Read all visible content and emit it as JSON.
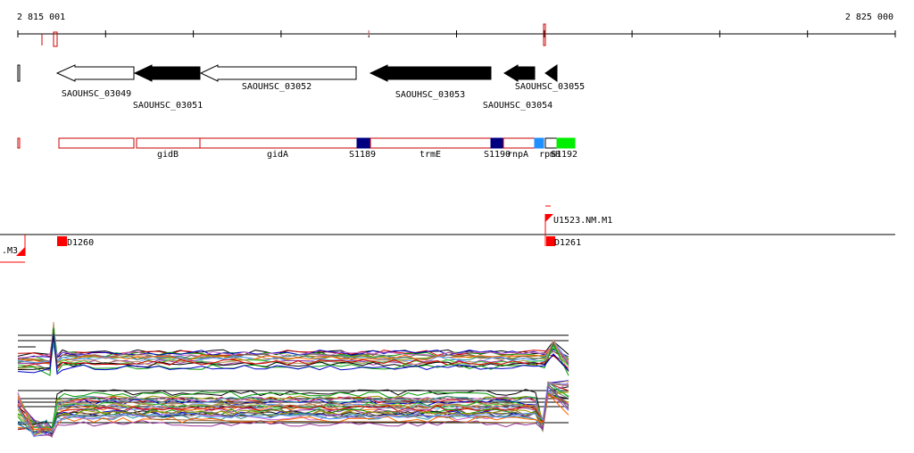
{
  "ruler": {
    "start_label": "2 815 001",
    "end_label": "2 825 000"
  },
  "genes": [
    {
      "name": "SAOUHSC_03049",
      "style": "outline",
      "dir": "left"
    },
    {
      "name": "SAOUHSC_03051",
      "style": "solid",
      "dir": "left"
    },
    {
      "name": "SAOUHSC_03052",
      "style": "outline",
      "dir": "left"
    },
    {
      "name": "SAOUHSC_03053",
      "style": "solid",
      "dir": "left"
    },
    {
      "name": "SAOUHSC_03054",
      "style": "solid",
      "dir": "left"
    },
    {
      "name": "SAOUHSC_03055",
      "style": "solid",
      "dir": "left"
    }
  ],
  "features": [
    {
      "name": "gidB"
    },
    {
      "name": "gidA"
    },
    {
      "name": "S1189"
    },
    {
      "name": "trmE"
    },
    {
      "name": "S1190"
    },
    {
      "name": "rnpA"
    },
    {
      "name": "rpmH"
    },
    {
      "name": "S1192"
    }
  ],
  "probes": [
    {
      "name": ".M3"
    },
    {
      "name": "D1260"
    },
    {
      "name": "U1523.NM.M1"
    },
    {
      "name": "D1261"
    }
  ],
  "colors": {
    "feature_outline": "#cc0000",
    "feature_blue": "#000080",
    "feature_lightblue": "#1e90ff",
    "feature_green": "#00ee00",
    "probe_red": "#ff0000"
  }
}
